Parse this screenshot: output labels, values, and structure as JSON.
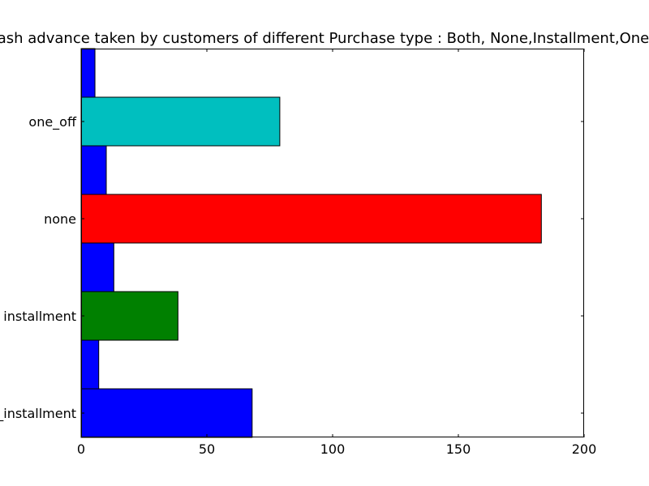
{
  "chart_data": {
    "type": "bar",
    "orientation": "horizontal",
    "title": "Cash advance taken by customers of different Purchase type : Both, None,Installment,One_Off",
    "categories": [
      "both_oneoff_installment",
      "installment",
      "none",
      "one_off"
    ],
    "category_labels": [
      "both_oneoff_installment",
      "installment",
      "none",
      "one_off"
    ],
    "series": [
      {
        "values": [
          68,
          38.5,
          183,
          79
        ],
        "colors": [
          "#0000ff",
          "#008000",
          "#ff0000",
          "#00bfbf"
        ]
      },
      {
        "values": [
          7,
          13,
          10,
          5.5
        ],
        "colors": [
          "#0000ff",
          "#0000ff",
          "#0000ff",
          "#0000ff"
        ]
      }
    ],
    "xlim": [
      0,
      200
    ],
    "x_ticks": [
      0,
      50,
      100,
      150,
      200
    ],
    "x_tick_labels": [
      "0",
      "50",
      "100",
      "150",
      "200"
    ],
    "xlabel": "",
    "ylabel": "",
    "grid": false
  }
}
